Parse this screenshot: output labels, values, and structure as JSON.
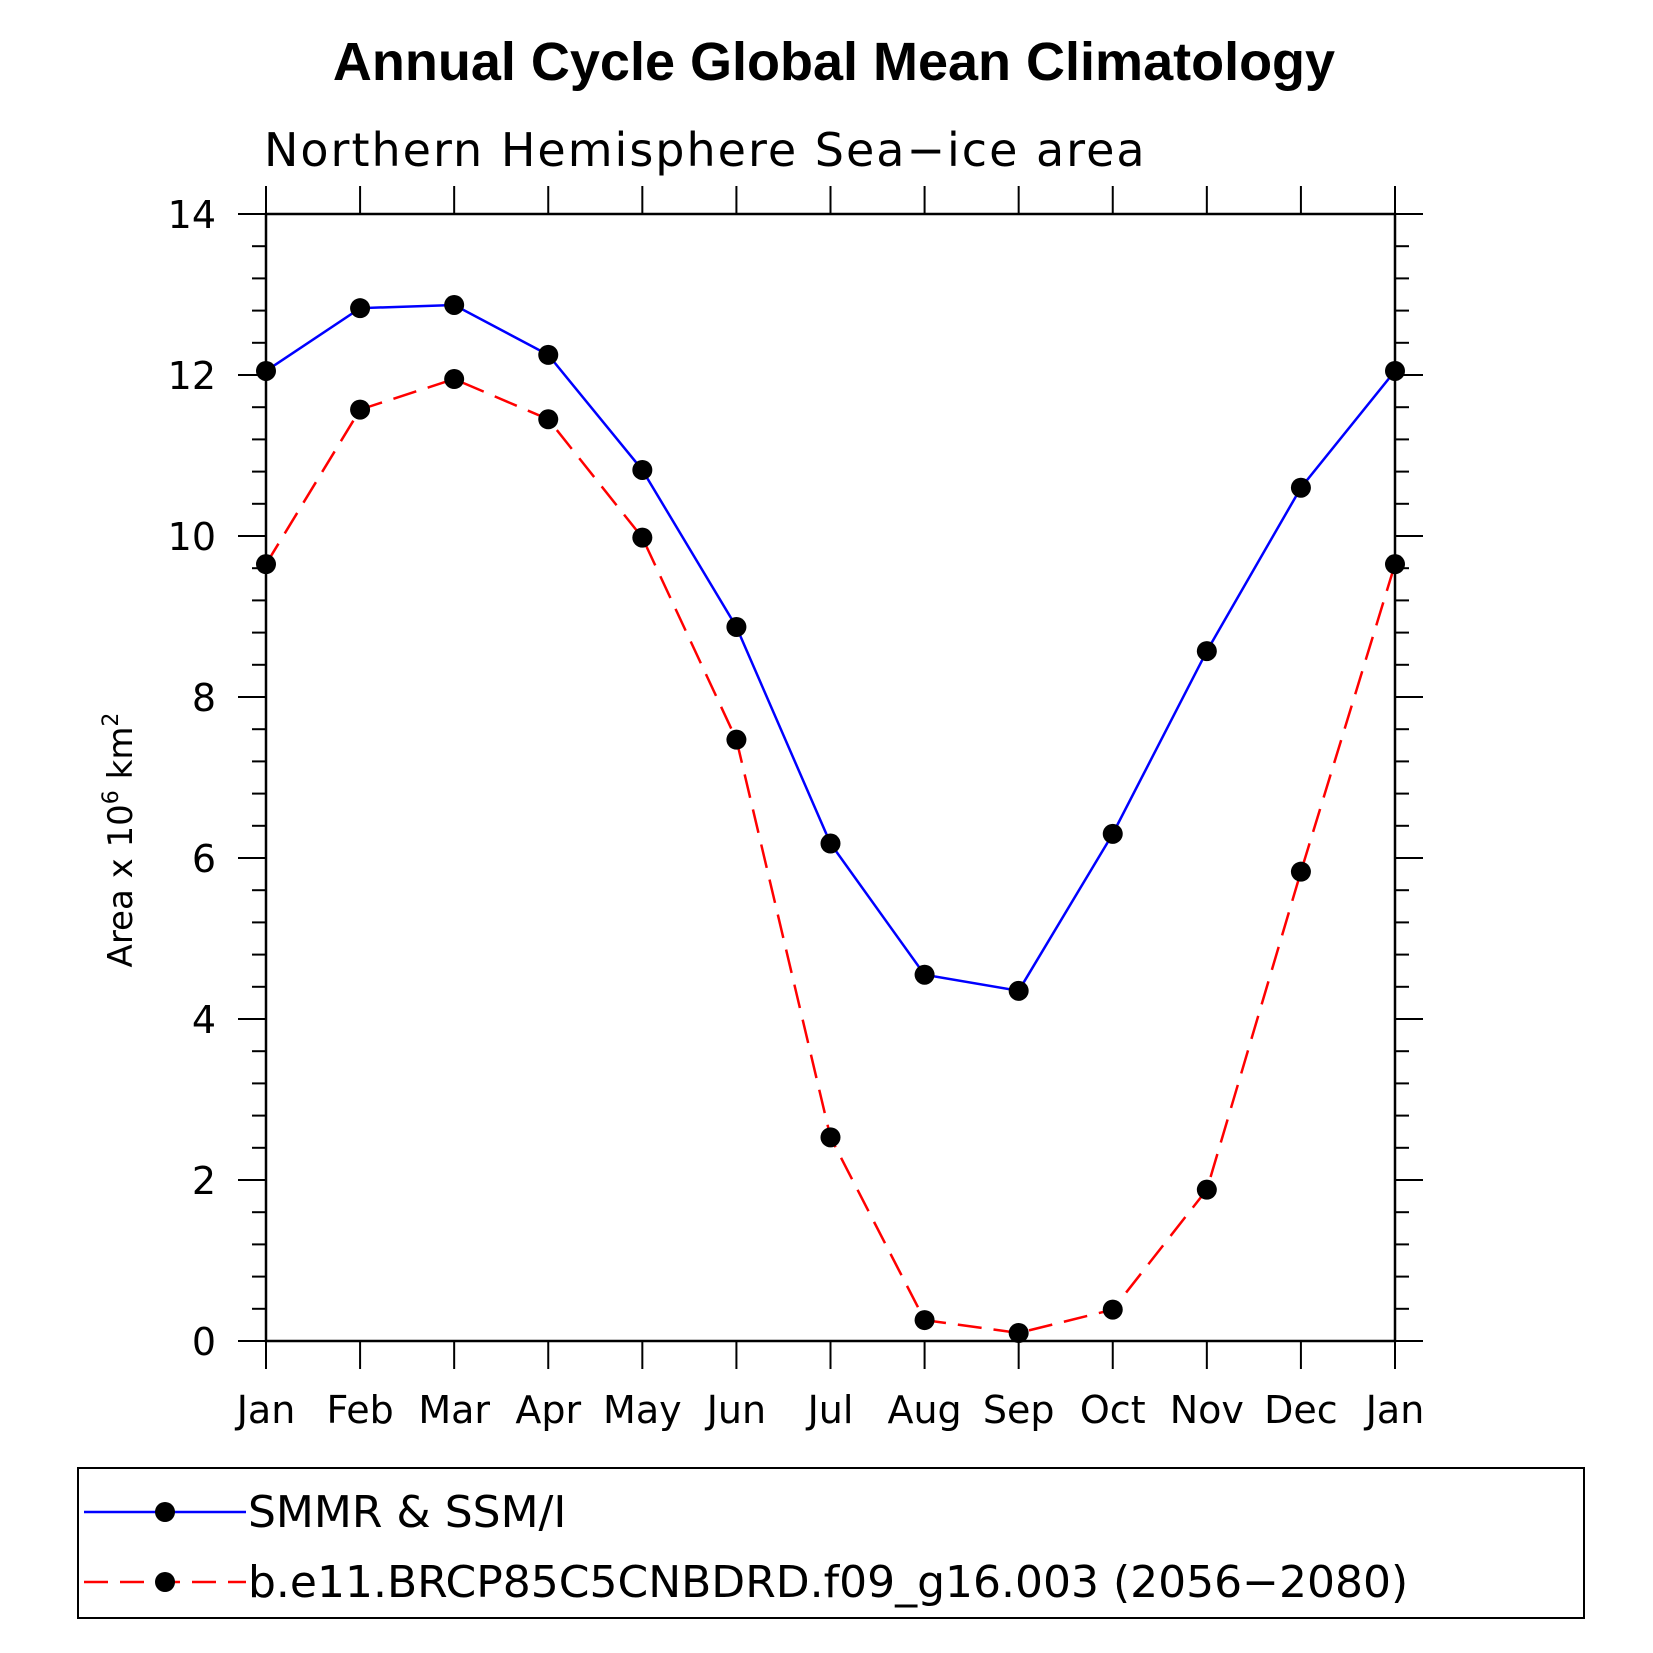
{
  "chart_data": {
    "type": "line",
    "title": "Annual Cycle Global Mean Climatology",
    "subtitle": "Northern Hemisphere Sea−ice area",
    "ylabel_main": "Area x 10",
    "ylabel_sup6": "6",
    "ylabel_unit": "km",
    "ylabel_sup2": "2",
    "xlabel": "",
    "categories": [
      "Jan",
      "Feb",
      "Mar",
      "Apr",
      "May",
      "Jun",
      "Jul",
      "Aug",
      "Sep",
      "Oct",
      "Nov",
      "Dec",
      "Jan"
    ],
    "ylim": [
      0,
      14
    ],
    "yticks": [
      0,
      2,
      4,
      6,
      8,
      10,
      12,
      14
    ],
    "ytick_labels": [
      "0",
      "2",
      "4",
      "6",
      "8",
      "10",
      "12",
      "14"
    ],
    "grid": false,
    "legend_position": "bottom",
    "series": [
      {
        "name": "SMMR & SSM/I",
        "color": "#0000ff",
        "dash": "solid",
        "values": [
          12.05,
          12.83,
          12.87,
          12.25,
          10.82,
          8.87,
          6.18,
          4.55,
          4.35,
          6.3,
          8.57,
          10.6,
          12.05
        ]
      },
      {
        "name": "b.e11.BRCP85C5CNBDRD.f09_g16.003 (2056−2080)",
        "color": "#ff0000",
        "dash": "dashed",
        "values": [
          9.65,
          11.57,
          11.95,
          11.45,
          9.98,
          7.47,
          2.53,
          0.26,
          0.1,
          0.39,
          1.88,
          5.83,
          9.65
        ]
      }
    ],
    "marker": {
      "shape": "circle",
      "color": "#000000"
    }
  }
}
